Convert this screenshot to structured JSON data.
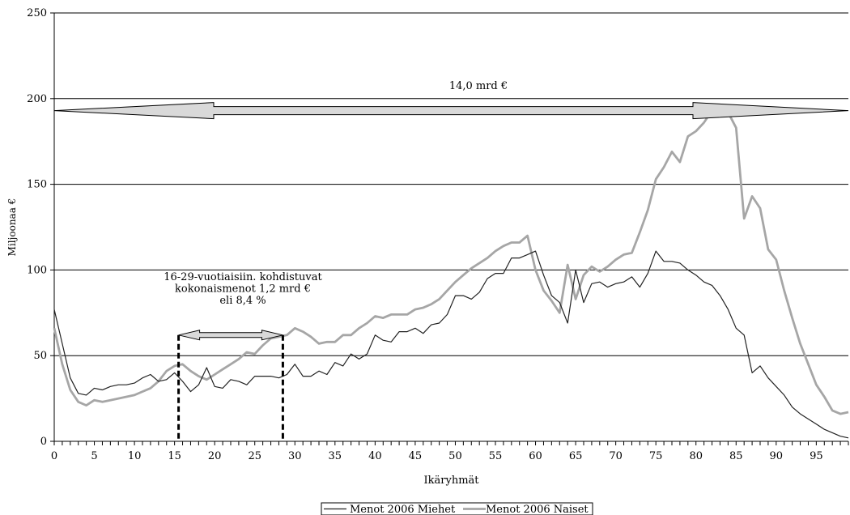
{
  "chart_data": {
    "type": "line",
    "xlabel": "Ikäryhmät",
    "ylabel": "Miljoonaa €",
    "xlim": [
      0,
      99
    ],
    "ylim": [
      0,
      250
    ],
    "x_ticks": [
      "0",
      "5",
      "10",
      "15",
      "20",
      "25",
      "30",
      "35",
      "40",
      "45",
      "50",
      "55",
      "60",
      "65",
      "70",
      "75",
      "80",
      "85",
      "90",
      "95"
    ],
    "y_ticks": [
      "0",
      "50",
      "100",
      "150",
      "200",
      "250"
    ],
    "grid": "horizontal",
    "legend_position": "bottom",
    "colors": {
      "miehet": "#222222",
      "naiset": "#a6a6a6",
      "arrow_fill": "#d9d9d9"
    },
    "series": [
      {
        "name": "Menot 2006 Miehet",
        "values": [
          77,
          57,
          37,
          28,
          27,
          31,
          30,
          32,
          33,
          33,
          34,
          37,
          39,
          35,
          36,
          40,
          35,
          29,
          33,
          43,
          32,
          31,
          36,
          35,
          33,
          38,
          38,
          38,
          37,
          39,
          45,
          38,
          38,
          41,
          39,
          46,
          44,
          51,
          48,
          51,
          62,
          59,
          58,
          64,
          64,
          66,
          63,
          68,
          69,
          74,
          85,
          85,
          83,
          87,
          95,
          98,
          98,
          107,
          107,
          109,
          111,
          97,
          85,
          81,
          69,
          100,
          81,
          92,
          93,
          90,
          92,
          93,
          96,
          90,
          98,
          111,
          105,
          105,
          104,
          100,
          97,
          93,
          91,
          85,
          77,
          66,
          62,
          40,
          44,
          37,
          32,
          27,
          20,
          16,
          13,
          10,
          7,
          5,
          3,
          2
        ]
      },
      {
        "name": "Menot 2006 Naiset",
        "values": [
          66,
          45,
          30,
          23,
          21,
          24,
          23,
          24,
          25,
          26,
          27,
          29,
          31,
          35,
          41,
          44,
          45,
          41,
          38,
          36,
          39,
          42,
          45,
          48,
          52,
          51,
          56,
          60,
          61,
          62,
          66,
          64,
          61,
          57,
          58,
          58,
          62,
          62,
          66,
          69,
          73,
          72,
          74,
          74,
          74,
          77,
          78,
          80,
          83,
          88,
          93,
          97,
          101,
          104,
          107,
          111,
          114,
          116,
          116,
          120,
          100,
          88,
          82,
          75,
          103,
          83,
          97,
          102,
          99,
          102,
          106,
          109,
          110,
          122,
          135,
          153,
          160,
          169,
          163,
          178,
          181,
          186,
          193,
          194,
          192,
          183,
          130,
          143,
          136,
          112,
          106,
          88,
          72,
          57,
          45,
          33,
          26,
          18,
          16,
          17
        ]
      }
    ],
    "annotations": {
      "total_label": "14,0 mrd €",
      "total_arrow_y": 193,
      "youth_label_lines": [
        "16-29-vuotiaisiin. kohdistuvat",
        "kokonaismenot 1,2 mrd €",
        "eli 8,4 %"
      ],
      "youth_range": [
        15.5,
        28.5
      ],
      "youth_arrow_y": 62
    }
  }
}
